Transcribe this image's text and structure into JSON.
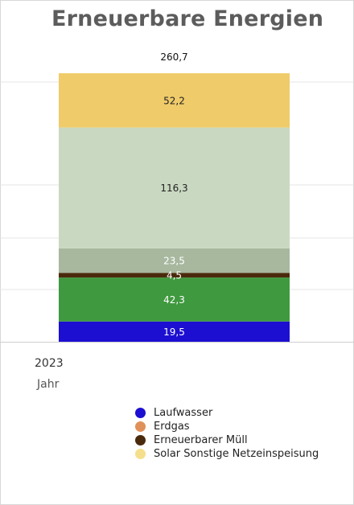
{
  "chart_data": {
    "type": "bar",
    "stacked": true,
    "title": "Erneuerbare Energien",
    "categories": [
      "2023"
    ],
    "xlabel": "Jahr",
    "total_label": "260,7",
    "ylim": [
      0,
      260.7
    ],
    "series": [
      {
        "name": "Laufwasser",
        "values": [
          19.5
        ],
        "label": "19,5",
        "color": "#1d0fd1",
        "label_color": "#ffffff"
      },
      {
        "name": "",
        "values": [
          42.3
        ],
        "label": "42,3",
        "color": "#3f993f",
        "label_color": "#ffffff"
      },
      {
        "name": "Erneuerbarer Müll",
        "values": [
          4.5
        ],
        "label": "4,5",
        "color": "#4a2a0c",
        "label_color": "#ffffff"
      },
      {
        "name": "",
        "values": [
          23.5
        ],
        "label": "23,5",
        "color": "#a7b89e",
        "label_color": "#ffffff"
      },
      {
        "name": "",
        "values": [
          116.3
        ],
        "label": "116,3",
        "color": "#c9d9c1",
        "label_color": "#222222"
      },
      {
        "name": "Solar Sonstige Netzeinspeisung",
        "values": [
          52.2
        ],
        "label": "52,2",
        "color": "#efcb6a",
        "label_color": "#222222"
      }
    ],
    "legend": [
      {
        "name": "Laufwasser",
        "color": "#1d0fd1"
      },
      {
        "name": "Erdgas",
        "color": "#e0915a"
      },
      {
        "name": "Erneuerbarer Müll",
        "color": "#4a2a0c"
      },
      {
        "name": "Solar Sonstige Netzeinspeisung",
        "color": "#f5df8c"
      }
    ],
    "legend_position": "bottom",
    "grid": true
  }
}
